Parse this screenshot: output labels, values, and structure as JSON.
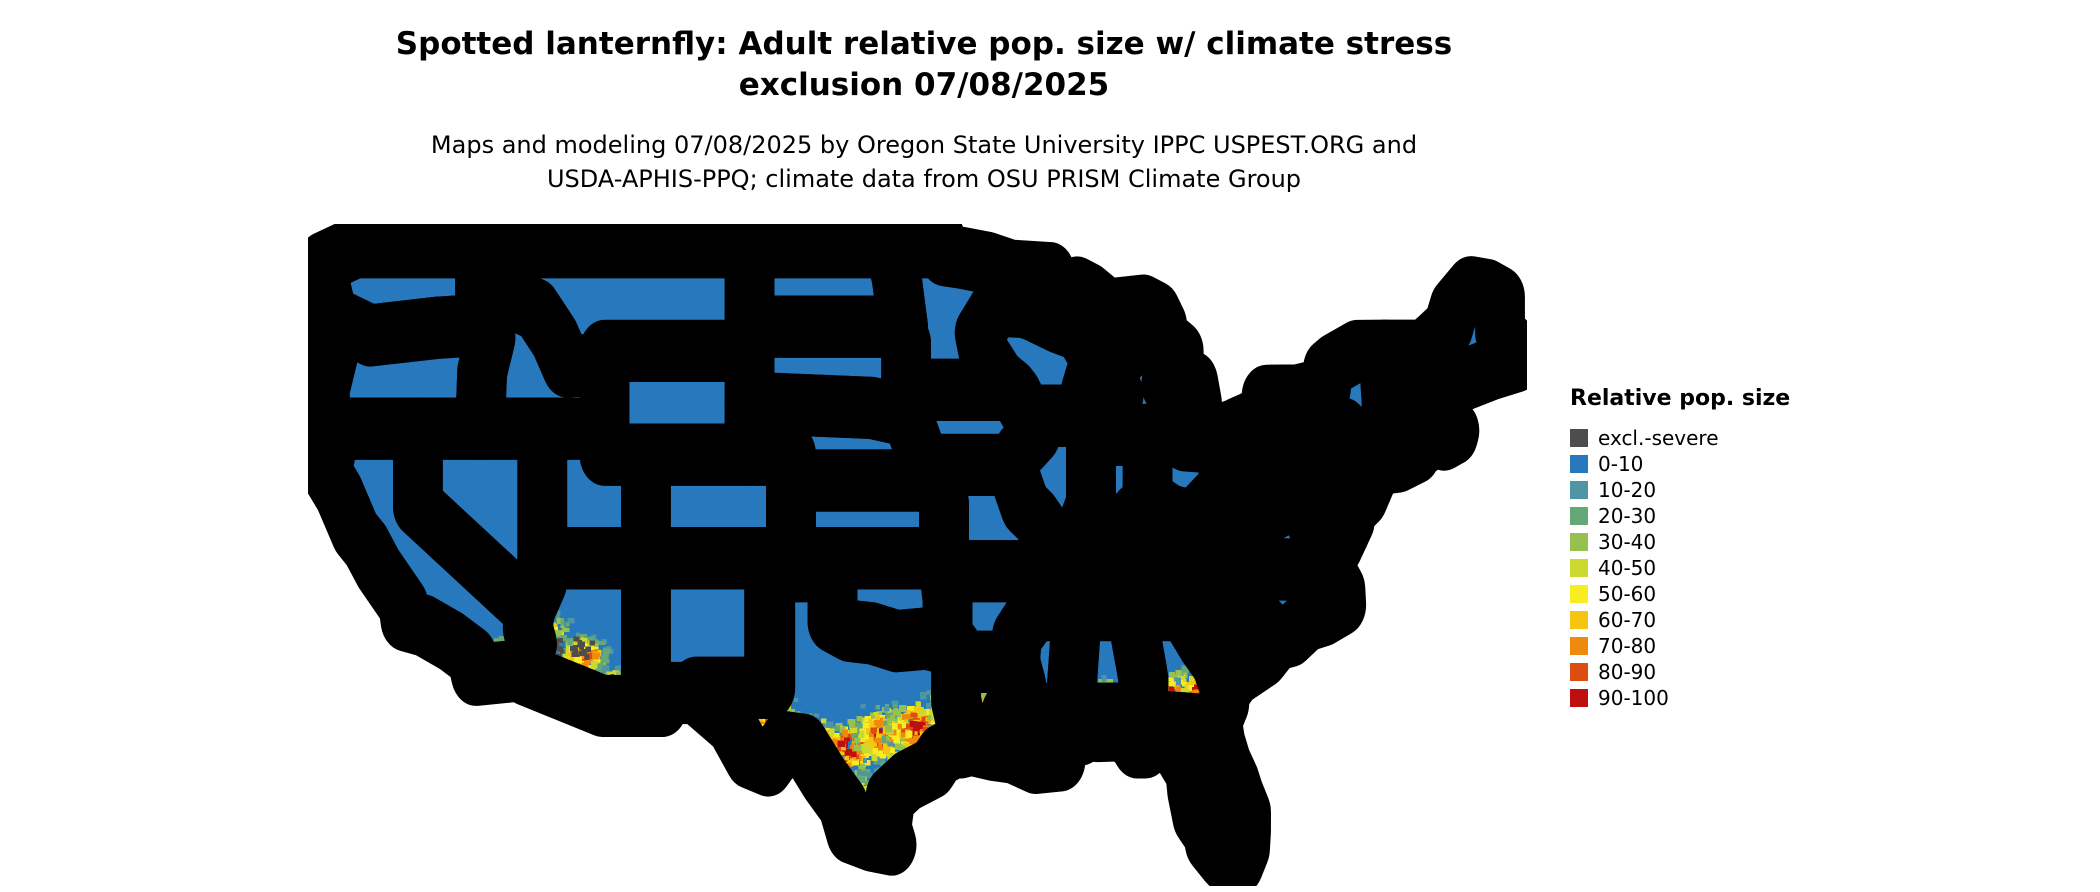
{
  "title": {
    "line1": "Spotted lanternfly: Adult relative pop. size w/ climate stress",
    "line2": "exclusion 07/08/2025"
  },
  "subtitle": {
    "line1": "Maps and modeling 07/08/2025 by Oregon State University IPPC USPEST.ORG and",
    "line2": "USDA-APHIS-PPQ; climate data from OSU PRISM Climate Group"
  },
  "legend": {
    "title": "Relative pop. size",
    "items": [
      {
        "label": "excl.-severe",
        "color": "#4d4d4d"
      },
      {
        "label": "0-10",
        "color": "#2878bd"
      },
      {
        "label": "10-20",
        "color": "#4e95a5"
      },
      {
        "label": "20-30",
        "color": "#64a878"
      },
      {
        "label": "30-40",
        "color": "#97c14f"
      },
      {
        "label": "40-50",
        "color": "#ccd930"
      },
      {
        "label": "50-60",
        "color": "#f8ed20"
      },
      {
        "label": "60-70",
        "color": "#f7c511"
      },
      {
        "label": "70-80",
        "color": "#ee8b0e"
      },
      {
        "label": "80-90",
        "color": "#dd4d10"
      },
      {
        "label": "90-100",
        "color": "#c00d0d"
      }
    ]
  },
  "map": {
    "base_color": "#2878bd",
    "border_color": "#000000",
    "background": "#ffffff",
    "heat_regions": [
      {
        "lon": -102.9,
        "lat": 30.7,
        "sx": 1.1,
        "sy": 0.8,
        "n": 130,
        "heat": 0.85
      },
      {
        "lon": -100.8,
        "lat": 29.9,
        "sx": 1.0,
        "sy": 0.8,
        "n": 140,
        "heat": 0.9
      },
      {
        "lon": -99.2,
        "lat": 29.6,
        "sx": 1.2,
        "sy": 0.9,
        "n": 200,
        "heat": 1.0
      },
      {
        "lon": -97.6,
        "lat": 30.2,
        "sx": 1.1,
        "sy": 0.9,
        "n": 180,
        "heat": 0.95
      },
      {
        "lon": -95.9,
        "lat": 30.4,
        "sx": 1.2,
        "sy": 0.9,
        "n": 200,
        "heat": 1.0
      },
      {
        "lon": -98.9,
        "lat": 27.6,
        "sx": 1.2,
        "sy": 1.0,
        "n": 120,
        "heat": 0.55
      },
      {
        "lon": -96.8,
        "lat": 28.6,
        "sx": 0.8,
        "sy": 0.6,
        "n": 90,
        "heat": 0.7
      },
      {
        "lon": -94.3,
        "lat": 31.1,
        "sx": 0.9,
        "sy": 0.9,
        "n": 140,
        "heat": 0.9
      },
      {
        "lon": -92.5,
        "lat": 30.7,
        "sx": 1.1,
        "sy": 0.8,
        "n": 190,
        "heat": 1.0
      },
      {
        "lon": -91.0,
        "lat": 30.9,
        "sx": 0.9,
        "sy": 0.8,
        "n": 150,
        "heat": 0.95
      },
      {
        "lon": -89.7,
        "lat": 31.0,
        "sx": 0.8,
        "sy": 0.8,
        "n": 140,
        "heat": 0.95
      },
      {
        "lon": -88.3,
        "lat": 31.3,
        "sx": 0.9,
        "sy": 0.9,
        "n": 150,
        "heat": 0.9
      },
      {
        "lon": -86.8,
        "lat": 31.3,
        "sx": 0.9,
        "sy": 0.8,
        "n": 150,
        "heat": 0.9
      },
      {
        "lon": -85.2,
        "lat": 31.5,
        "sx": 0.9,
        "sy": 0.8,
        "n": 150,
        "heat": 0.9
      },
      {
        "lon": -83.7,
        "lat": 31.6,
        "sx": 1.0,
        "sy": 0.9,
        "n": 180,
        "heat": 0.95
      },
      {
        "lon": -82.3,
        "lat": 31.8,
        "sx": 0.9,
        "sy": 0.8,
        "n": 150,
        "heat": 0.9
      },
      {
        "lon": -81.3,
        "lat": 32.6,
        "sx": 0.7,
        "sy": 0.7,
        "n": 120,
        "heat": 0.9
      },
      {
        "lon": -80.6,
        "lat": 33.0,
        "sx": 0.6,
        "sy": 0.5,
        "n": 70,
        "heat": 0.7
      },
      {
        "lon": -84.5,
        "lat": 30.5,
        "sx": 1.2,
        "sy": 0.45,
        "n": 90,
        "heat": 0.55
      },
      {
        "lon": -82.3,
        "lat": 30.1,
        "sx": 0.9,
        "sy": 0.5,
        "n": 80,
        "heat": 0.5
      },
      {
        "lon": -112.0,
        "lat": 33.2,
        "sx": 0.9,
        "sy": 0.6,
        "n": 150,
        "heat": 0.9
      },
      {
        "lon": -110.6,
        "lat": 32.0,
        "sx": 0.8,
        "sy": 0.6,
        "n": 110,
        "heat": 0.8
      },
      {
        "lon": -114.2,
        "lat": 32.9,
        "sx": 0.7,
        "sy": 0.5,
        "n": 80,
        "heat": 0.75
      },
      {
        "lon": -115.9,
        "lat": 33.3,
        "sx": 0.7,
        "sy": 0.5,
        "n": 80,
        "heat": 0.7
      },
      {
        "lon": -117.3,
        "lat": 33.6,
        "sx": 0.6,
        "sy": 0.4,
        "n": 50,
        "heat": 0.5
      },
      {
        "lon": -113.6,
        "lat": 34.3,
        "sx": 0.9,
        "sy": 0.5,
        "n": 70,
        "heat": 0.5
      }
    ],
    "severe_regions": [
      {
        "lon": -112.2,
        "lat": 33.5,
        "sx": 0.5,
        "sy": 0.35,
        "n": 16
      },
      {
        "lon": -111.0,
        "lat": 32.3,
        "sx": 0.4,
        "sy": 0.3,
        "n": 10
      },
      {
        "lon": -114.6,
        "lat": 32.8,
        "sx": 0.3,
        "sy": 0.25,
        "n": 7
      },
      {
        "lon": -113.3,
        "lat": 33.5,
        "sx": 0.4,
        "sy": 0.3,
        "n": 8
      }
    ]
  }
}
